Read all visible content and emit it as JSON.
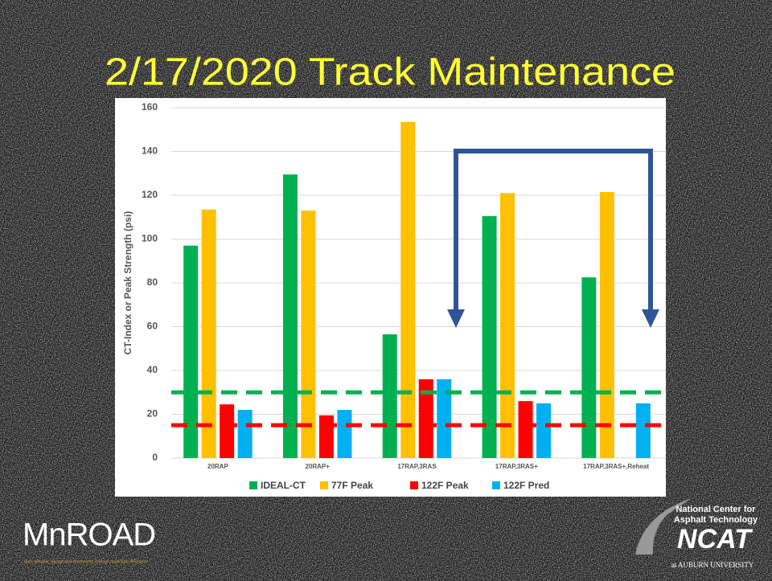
{
  "chart_data": {
    "type": "bar",
    "title": "2/17/2020 Track Maintenance",
    "y_label": "CT-Index or Peak Strength (psi)",
    "categories": [
      "20RAP",
      "20RAP+",
      "17RAP,3RAS",
      "17RAP,3RAS+",
      "17RAP,3RAS+,Reheat"
    ],
    "series": [
      {
        "name": "IDEAL-CT",
        "color": "#00b050",
        "values": [
          97,
          129.5,
          56.5,
          110.5,
          82.5
        ]
      },
      {
        "name": "77F Peak",
        "color": "#ffc000",
        "values": [
          113.5,
          113,
          153.5,
          121,
          121.5
        ]
      },
      {
        "name": "122F Peak",
        "color": "#ff0000",
        "values": [
          24.5,
          19.5,
          36,
          26,
          null
        ]
      },
      {
        "name": "122F Pred",
        "color": "#00b0f0",
        "values": [
          22,
          22,
          36,
          25,
          25
        ]
      }
    ],
    "reference_lines": [
      {
        "value": 30,
        "color": "#00b050"
      },
      {
        "value": 15,
        "color": "#ff0000"
      }
    ],
    "ylim": [
      0,
      160
    ],
    "yticks": [
      0,
      20,
      40,
      60,
      80,
      100,
      120,
      140,
      160
    ],
    "grid": true,
    "legend": "bottom"
  },
  "logos": {
    "mnroad": "MnROAD",
    "mnroad_tagline": "Safe, Smarter, Sustainable Pavements Through Innovative Research",
    "ncat_line1": "National Center for",
    "ncat_line2": "Asphalt Technology",
    "ncat": "NCAT",
    "ncat_sub": "at AUBURN UNIVERSITY"
  }
}
